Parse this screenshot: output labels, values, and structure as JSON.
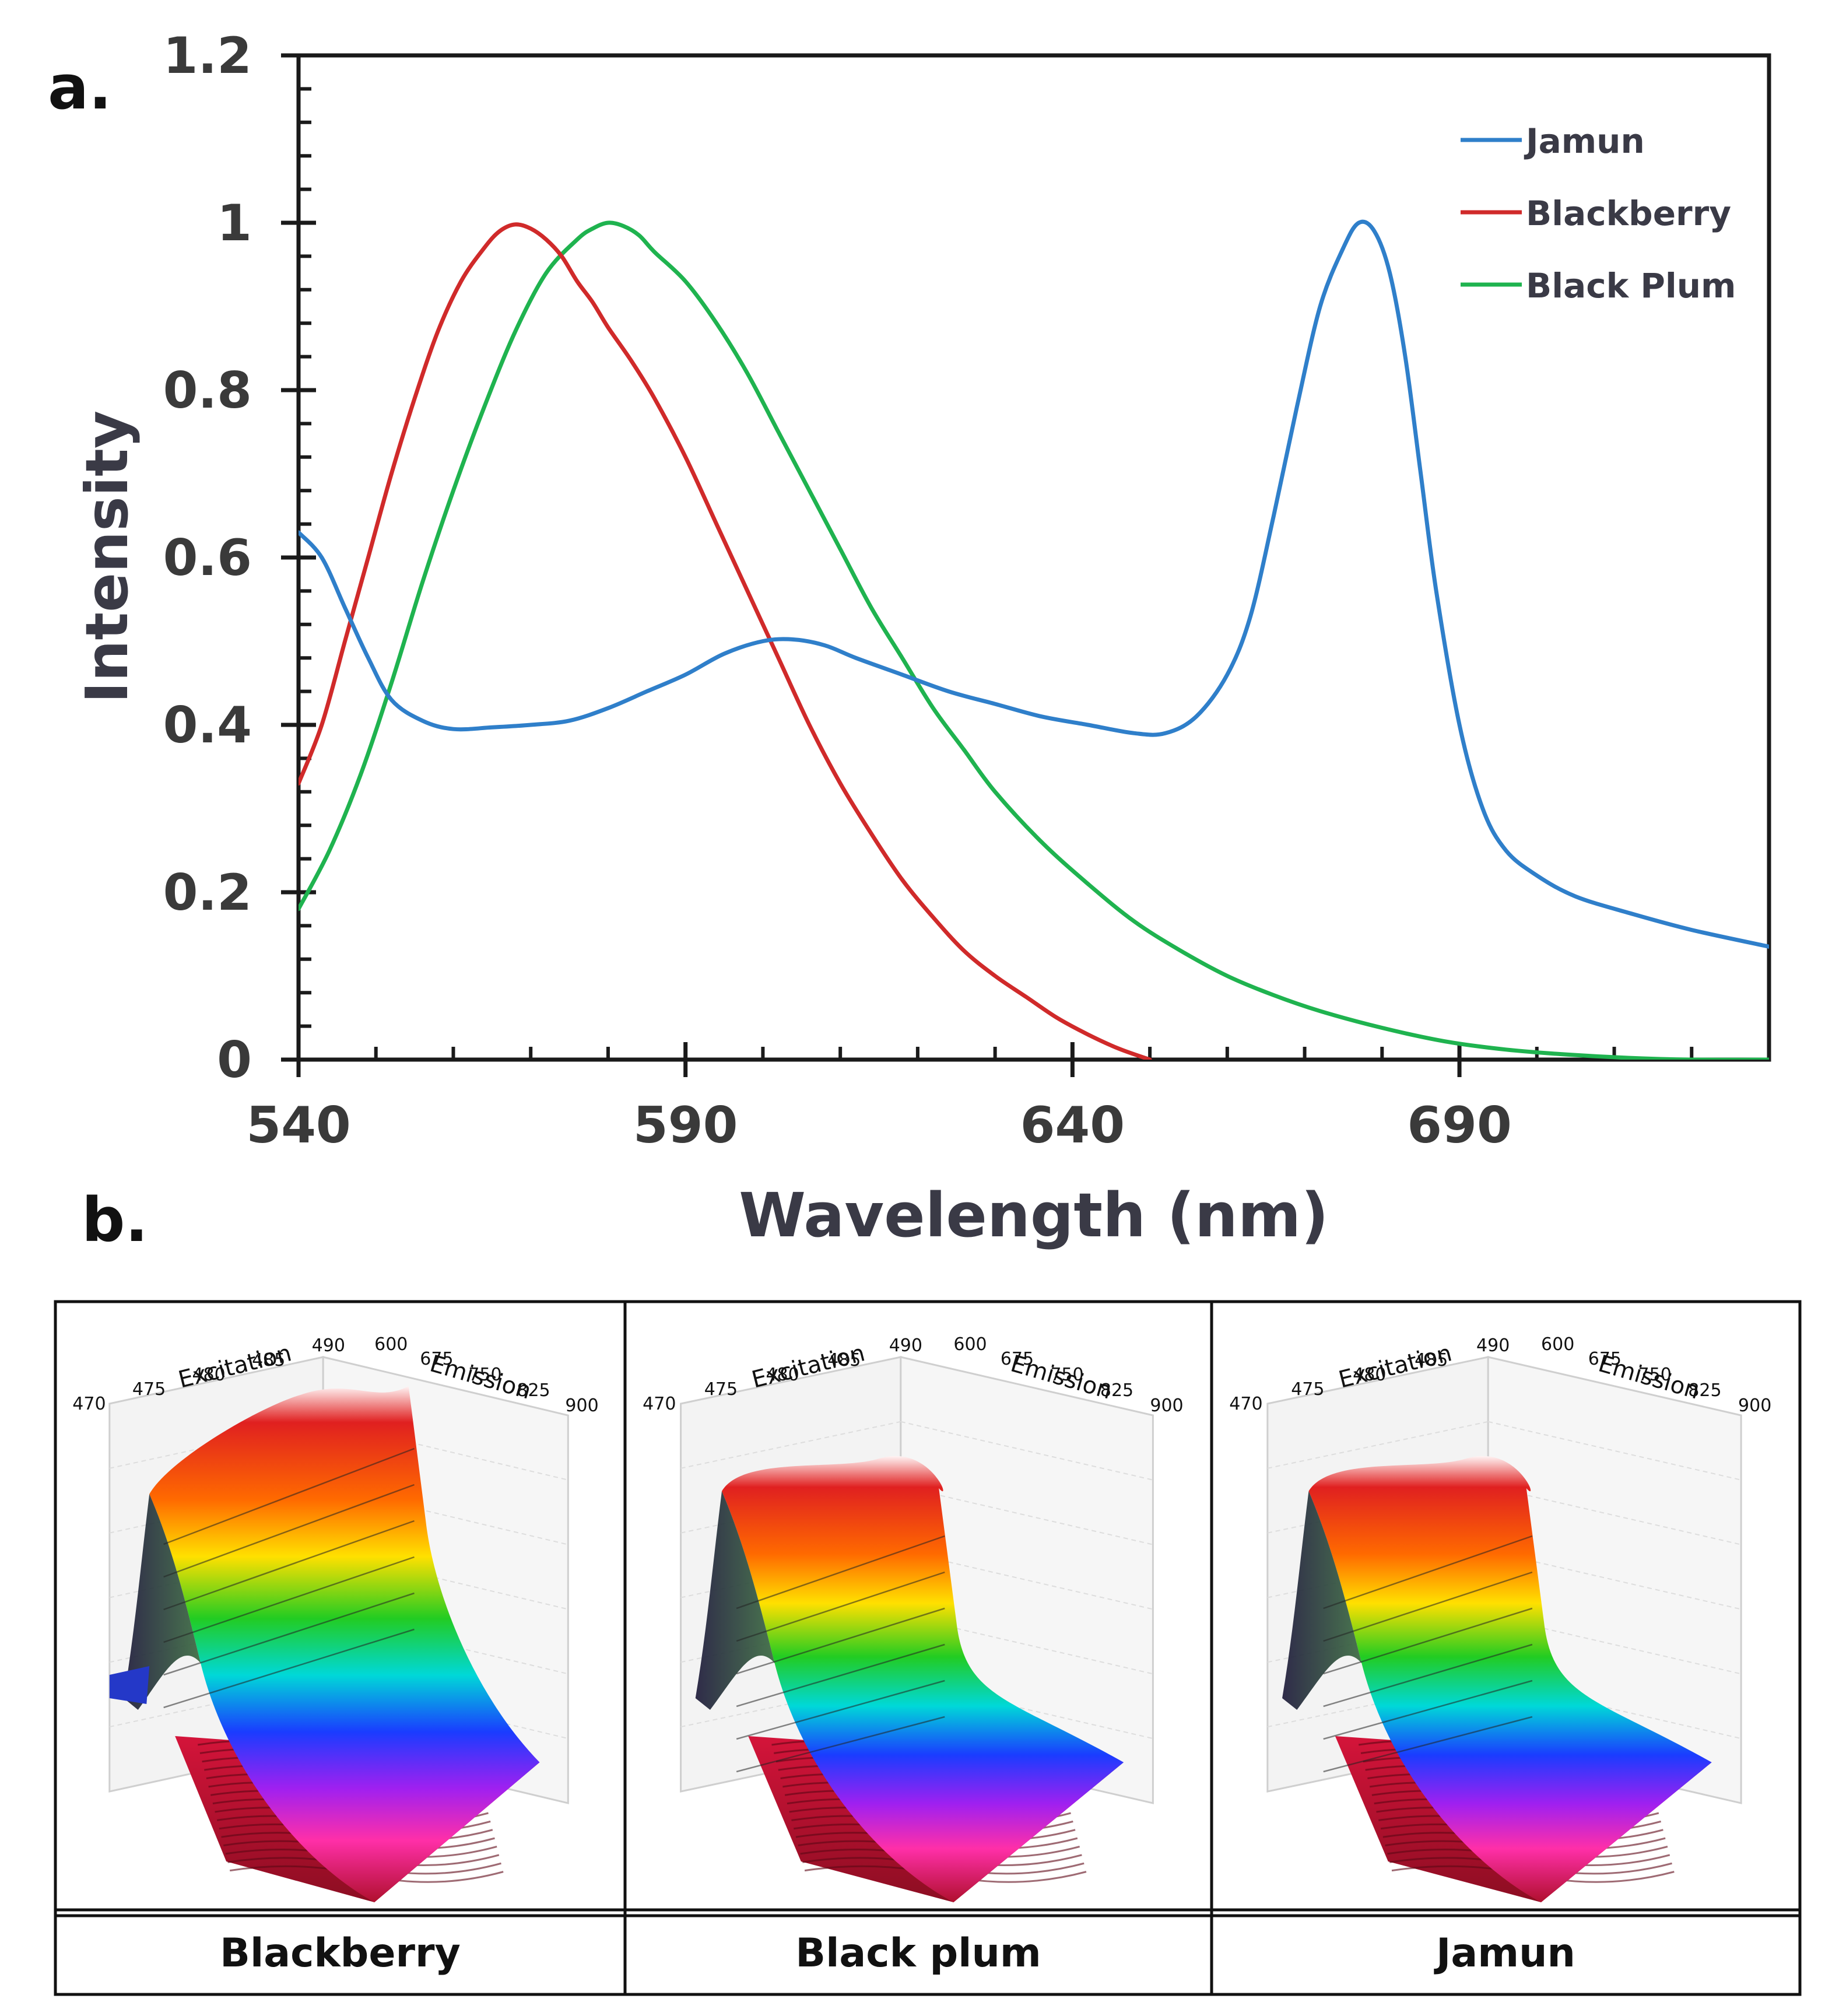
{
  "panel_labels": {
    "a": "a.",
    "b": "b."
  },
  "colors": {
    "jamun": "#2f7fca",
    "blackberry": "#d02a2a",
    "black_plum": "#1fb34f",
    "axis": "#1a1a1a"
  },
  "chart_data": [
    {
      "type": "line",
      "title": "",
      "xlabel": "Wavelength (nm)",
      "ylabel": "Intensity",
      "xlim": [
        540,
        730
      ],
      "ylim": [
        0,
        1.2
      ],
      "x_ticks": [
        540,
        590,
        640,
        690
      ],
      "x_tick_labels": [
        "540",
        "590",
        "640",
        "690"
      ],
      "y_ticks": [
        0,
        0.2,
        0.4,
        0.6,
        0.8,
        1.0,
        1.2
      ],
      "y_tick_labels": [
        "0",
        "0.2",
        "0.4",
        "0.6",
        "0.8",
        "1",
        "1.2"
      ],
      "legend_position": "top-right",
      "series": [
        {
          "name": "Jamun",
          "color": "#2f7fca",
          "x": [
            540,
            543,
            546,
            549,
            552,
            556,
            560,
            565,
            570,
            575,
            580,
            585,
            590,
            595,
            600,
            604,
            608,
            612,
            618,
            624,
            630,
            636,
            642,
            648,
            652,
            656,
            660,
            663,
            666,
            669,
            672,
            675,
            677,
            679,
            681,
            683,
            685,
            687,
            690,
            693,
            696,
            700,
            705,
            712,
            720,
            730
          ],
          "y": [
            0.63,
            0.6,
            0.54,
            0.48,
            0.43,
            0.405,
            0.395,
            0.397,
            0.4,
            0.405,
            0.42,
            0.44,
            0.46,
            0.485,
            0.5,
            0.502,
            0.495,
            0.48,
            0.46,
            0.44,
            0.425,
            0.41,
            0.4,
            0.39,
            0.39,
            0.41,
            0.46,
            0.53,
            0.65,
            0.78,
            0.9,
            0.97,
            1.0,
            0.99,
            0.94,
            0.84,
            0.7,
            0.56,
            0.4,
            0.3,
            0.25,
            0.22,
            0.195,
            0.175,
            0.155,
            0.135
          ]
        },
        {
          "name": "Blackberry",
          "color": "#d02a2a",
          "x": [
            540,
            543,
            546,
            549,
            552,
            555,
            558,
            561,
            564,
            566,
            568,
            570,
            572,
            574,
            576,
            578,
            580,
            583,
            586,
            590,
            594,
            598,
            602,
            606,
            610,
            614,
            618,
            622,
            626,
            630,
            634,
            638,
            642,
            646,
            650
          ],
          "y": [
            0.33,
            0.4,
            0.5,
            0.6,
            0.7,
            0.79,
            0.87,
            0.93,
            0.97,
            0.99,
            0.998,
            0.993,
            0.98,
            0.96,
            0.93,
            0.905,
            0.875,
            0.835,
            0.79,
            0.72,
            0.64,
            0.56,
            0.48,
            0.4,
            0.33,
            0.27,
            0.215,
            0.17,
            0.13,
            0.1,
            0.075,
            0.05,
            0.03,
            0.013,
            0.0
          ]
        },
        {
          "name": "Black Plum",
          "color": "#1fb34f",
          "x": [
            540,
            544,
            548,
            552,
            556,
            560,
            564,
            568,
            572,
            576,
            578,
            580,
            582,
            584,
            586,
            590,
            594,
            598,
            602,
            606,
            610,
            614,
            618,
            622,
            626,
            630,
            636,
            642,
            648,
            654,
            660,
            666,
            672,
            680,
            688,
            696,
            704,
            712,
            720,
            730
          ],
          "y": [
            0.18,
            0.25,
            0.34,
            0.45,
            0.57,
            0.68,
            0.78,
            0.87,
            0.94,
            0.98,
            0.993,
            1.0,
            0.996,
            0.985,
            0.965,
            0.93,
            0.88,
            0.82,
            0.75,
            0.68,
            0.61,
            0.54,
            0.48,
            0.42,
            0.37,
            0.32,
            0.26,
            0.21,
            0.165,
            0.13,
            0.1,
            0.077,
            0.058,
            0.038,
            0.022,
            0.012,
            0.006,
            0.002,
            0.0,
            0.0
          ]
        }
      ]
    },
    {
      "type": "surface",
      "title": "Blackberry",
      "xlabel": "Excitation",
      "ylabel": "Emission",
      "excitation_ticks": [
        "470",
        "475",
        "480",
        "485",
        "490"
      ],
      "emission_ticks": [
        "600",
        "675",
        "750",
        "825",
        "900"
      ]
    },
    {
      "type": "surface",
      "title": "Black plum",
      "xlabel": "Excitation",
      "ylabel": "Emission",
      "excitation_ticks": [
        "470",
        "475",
        "480",
        "485",
        "490"
      ],
      "emission_ticks": [
        "600",
        "675",
        "750",
        "825",
        "900"
      ]
    },
    {
      "type": "surface",
      "title": "Jamun",
      "xlabel": "Excitation",
      "ylabel": "Emission",
      "excitation_ticks": [
        "470",
        "475",
        "480",
        "485",
        "490"
      ],
      "emission_ticks": [
        "600",
        "675",
        "750",
        "825",
        "900"
      ]
    }
  ]
}
